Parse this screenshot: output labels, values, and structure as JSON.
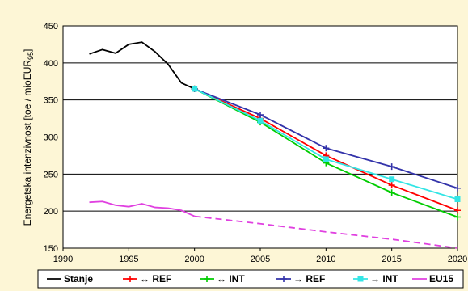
{
  "chart_data": {
    "type": "line",
    "ylabel": "Energetska intenzivnost [toe / mioEUR95]",
    "ylabel_main": "Energetska intenzivnost [toe / mioEUR",
    "ylabel_sub": "95",
    "ylabel_end": "]",
    "xlim": [
      1990,
      2020
    ],
    "ylim": [
      150,
      450
    ],
    "xticks": [
      1990,
      1995,
      2000,
      2005,
      2010,
      2015,
      2020
    ],
    "yticks": [
      150,
      200,
      250,
      300,
      350,
      400,
      450
    ],
    "grid": "horizontal",
    "legend_position": "bottom",
    "series": [
      {
        "name": "Stanje",
        "color": "#000000",
        "dash": false,
        "marker": "none",
        "x": [
          1992,
          1993,
          1994,
          1995,
          1996,
          1997,
          1998,
          1999,
          2000
        ],
        "y": [
          412,
          418,
          413,
          425,
          428,
          415,
          398,
          373,
          365
        ]
      },
      {
        "name": "↔ REF",
        "color": "#ff0000",
        "dash": false,
        "marker": "plus",
        "x": [
          2000,
          2005,
          2010,
          2015,
          2020
        ],
        "y": [
          365,
          325,
          275,
          235,
          201
        ]
      },
      {
        "name": "↔ INT",
        "color": "#00cc00",
        "dash": false,
        "marker": "plus",
        "x": [
          2000,
          2005,
          2010,
          2015,
          2020
        ],
        "y": [
          365,
          320,
          265,
          225,
          192
        ]
      },
      {
        "name": "→ REF",
        "color": "#3333aa",
        "dash": false,
        "marker": "plus",
        "x": [
          2000,
          2005,
          2010,
          2015,
          2020
        ],
        "y": [
          365,
          330,
          285,
          260,
          231
        ]
      },
      {
        "name": "→ INT",
        "color": "#33e5e5",
        "dash": false,
        "marker": "square",
        "x": [
          2000,
          2005,
          2010,
          2015,
          2020
        ],
        "y": [
          365,
          322,
          270,
          243,
          216
        ]
      },
      {
        "name": "EU15",
        "color": "#e040e0",
        "dash": false,
        "marker": "none",
        "dashed_after": 2000,
        "x": [
          1992,
          1993,
          1994,
          1995,
          1996,
          1997,
          1998,
          1999,
          2000,
          2005,
          2010,
          2015,
          2020
        ],
        "y": [
          212,
          213,
          208,
          206,
          210,
          205,
          204,
          201,
          193,
          183,
          172,
          162,
          150
        ]
      }
    ]
  }
}
